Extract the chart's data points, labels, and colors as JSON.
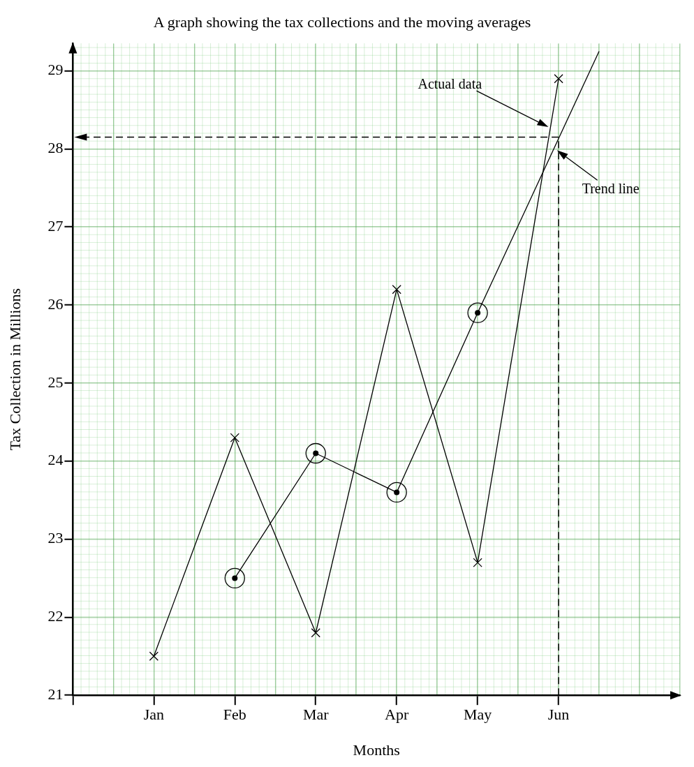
{
  "chart_data": {
    "type": "line",
    "title": "A graph showing the tax collections and the moving averages",
    "xlabel": "Months",
    "ylabel": "Tax Collection in Millions",
    "categories": [
      null,
      null,
      "Jan",
      null,
      "Feb",
      null,
      "Mar",
      null,
      "Apr",
      null,
      "May",
      null,
      "Jun",
      null,
      null,
      null
    ],
    "series": [
      {
        "values": [
          null,
          null,
          21.5,
          null,
          24.3,
          null,
          21.8,
          null,
          26.2,
          null,
          22.7,
          null,
          28.9,
          null,
          null,
          null
        ],
        "color": "#000000",
        "marker": "cross"
      },
      {
        "values": [
          null,
          null,
          null,
          null,
          22.5,
          null,
          24.1,
          null,
          23.6,
          null,
          25.9,
          null,
          null,
          null,
          null,
          null
        ],
        "color": "#000000",
        "marker": "circle"
      },
      {
        "values": [
          null,
          null,
          null,
          null,
          null,
          null,
          null,
          null,
          null,
          null,
          25.9,
          null,
          null,
          29.25,
          null,
          null
        ],
        "color": "#000000"
      }
    ],
    "ylim": [
      21,
      29.35
    ],
    "yticks": [
      21,
      22,
      23,
      24,
      25,
      26,
      27,
      28,
      29
    ],
    "ref_lines": [
      {
        "axis": "y",
        "value": 28.15,
        "label": null,
        "color": "#000000",
        "line_style": "dashed"
      },
      {
        "axis": "x",
        "value": "Jun",
        "label": null,
        "color": "#000000",
        "line_style": "dashed"
      }
    ],
    "annotations": [
      "Actual data",
      "Trend line"
    ],
    "grid": true,
    "legend": false,
    "line_style": "solid"
  }
}
